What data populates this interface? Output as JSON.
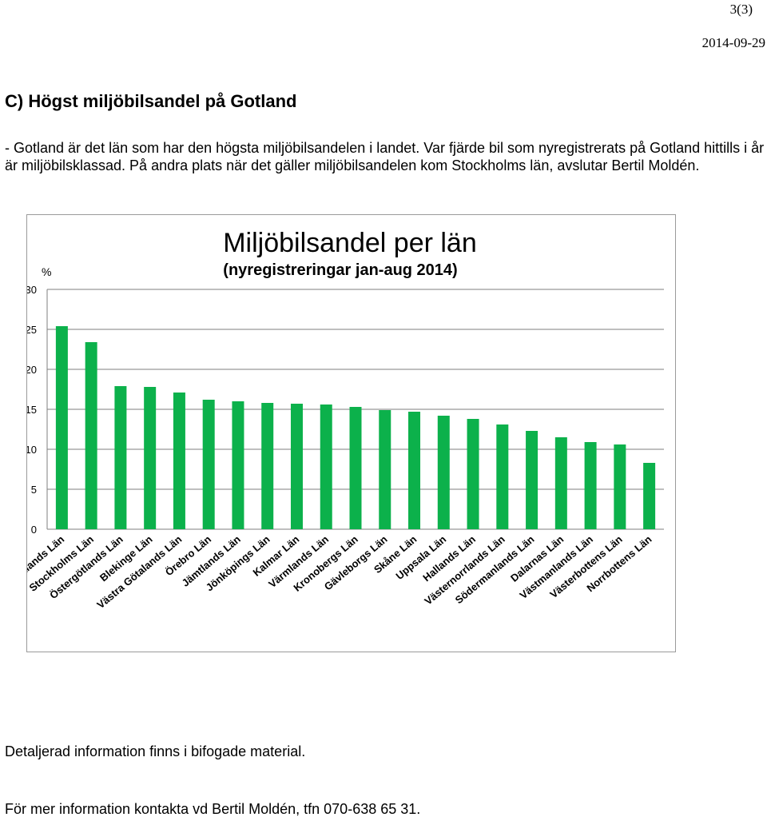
{
  "page_number": "3(3)",
  "date": "2014-09-29",
  "heading": "C) Högst miljöbilsandel på Gotland",
  "paragraph": "- Gotland är det län som har den högsta miljöbilsandelen i landet. Var fjärde bil som nyregistrerats på Gotland hittills i år är miljöbilsklassad. På andra plats när det gäller miljöbilsandelen kom Stockholms län, avslutar Bertil Moldén.",
  "footer": {
    "detail": "Detaljerad information finns i bifogade material.",
    "contact": "För mer information kontakta vd Bertil Moldén, tfn 070-638 65 31."
  },
  "colors": {
    "bar": "#0cb14b",
    "grid": "#7f7f7f",
    "border": "#9a9a9a"
  },
  "chart_data": {
    "type": "bar",
    "title": "Miljöbilsandel per län",
    "subtitle": "(nyregistreringar jan-aug 2014)",
    "ylabel": "%",
    "xlabel": "",
    "ylim": [
      0,
      30
    ],
    "yticks": [
      0,
      5,
      10,
      15,
      20,
      25,
      30
    ],
    "grid": true,
    "legend": "none",
    "categories": [
      "Gotlands Län",
      "Stockholms Län",
      "Östergötlands Län",
      "Blekinge Län",
      "Västra Götalands Län",
      "Örebro Län",
      "Jämtlands Län",
      "Jönköpings Län",
      "Kalmar Län",
      "Värmlands Län",
      "Kronobergs Län",
      "Gävleborgs Län",
      "Skåne Län",
      "Uppsala Län",
      "Hallands Län",
      "Västernorrlands Län",
      "Södermanlands Län",
      "Dalarnas Län",
      "Västmanlands Län",
      "Västerbottens Län",
      "Norrbottens Län"
    ],
    "values": [
      25.4,
      23.4,
      17.9,
      17.8,
      17.1,
      16.2,
      16.0,
      15.8,
      15.7,
      15.6,
      15.3,
      14.9,
      14.7,
      14.2,
      13.8,
      13.1,
      12.3,
      11.5,
      10.9,
      10.6,
      8.3
    ]
  }
}
